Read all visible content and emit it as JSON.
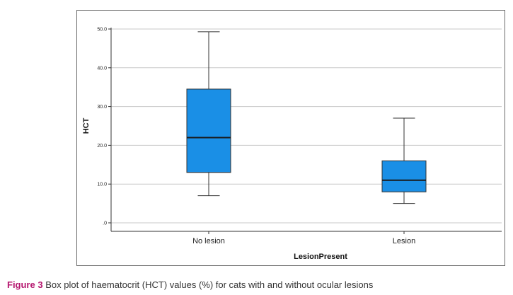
{
  "chart_data": {
    "type": "box",
    "title": "",
    "xlabel": "LesionPresent",
    "ylabel": "HCT",
    "ylim": [
      0,
      50
    ],
    "yticks": [
      0,
      10,
      20,
      30,
      40,
      50
    ],
    "ytick_labels": [
      ".0",
      "10.0",
      "20.0",
      "30.0",
      "40.0",
      "50.0"
    ],
    "grid": true,
    "box_color": "#1a8fe6",
    "categories": [
      "No lesion",
      "Lesion"
    ],
    "boxes": [
      {
        "name": "No lesion",
        "min": 7.0,
        "q1": 13.0,
        "median": 22.0,
        "q3": 34.5,
        "max": 49.3
      },
      {
        "name": "Lesion",
        "min": 5.0,
        "q1": 8.0,
        "median": 11.0,
        "q3": 16.0,
        "max": 27.0
      }
    ]
  },
  "caption": {
    "label": "Figure 3",
    "text": "Box plot of haematocrit (HCT) values (%) for cats with and without ocular lesions"
  }
}
